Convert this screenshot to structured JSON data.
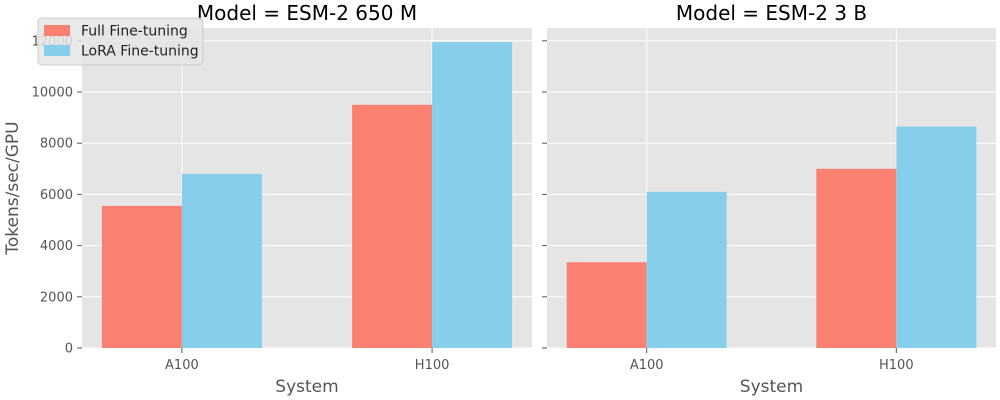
{
  "chart_data": [
    {
      "type": "bar",
      "title": "Model = ESM-2 650 M",
      "xlabel": "System",
      "ylabel": "Tokens/sec/GPU",
      "categories": [
        "A100",
        "H100"
      ],
      "series": [
        {
          "name": "Full Fine-tuning",
          "color": "#fa8072",
          "values": [
            5550,
            9500
          ]
        },
        {
          "name": "LoRA Fine-tuning",
          "color": "#87ceeb",
          "values": [
            6800,
            11950
          ]
        }
      ],
      "ylim": [
        0,
        12500
      ],
      "yticks": [
        "0",
        "2000",
        "4000",
        "6000",
        "8000",
        "10000",
        "12000"
      ],
      "grid": true
    },
    {
      "type": "bar",
      "title": "Model = ESM-2 3 B",
      "xlabel": "System",
      "ylabel": "",
      "categories": [
        "A100",
        "H100"
      ],
      "series": [
        {
          "name": "Full Fine-tuning",
          "color": "#fa8072",
          "values": [
            3350,
            7000
          ]
        },
        {
          "name": "LoRA Fine-tuning",
          "color": "#87ceeb",
          "values": [
            6100,
            8650
          ]
        }
      ],
      "ylim": [
        0,
        12500
      ],
      "yticks": [],
      "grid": true
    }
  ],
  "legend": {
    "placement": "top-left",
    "items": [
      {
        "label": "Full Fine-tuning",
        "color": "#fa8072"
      },
      {
        "label": "LoRA Fine-tuning",
        "color": "#87ceeb"
      }
    ]
  }
}
